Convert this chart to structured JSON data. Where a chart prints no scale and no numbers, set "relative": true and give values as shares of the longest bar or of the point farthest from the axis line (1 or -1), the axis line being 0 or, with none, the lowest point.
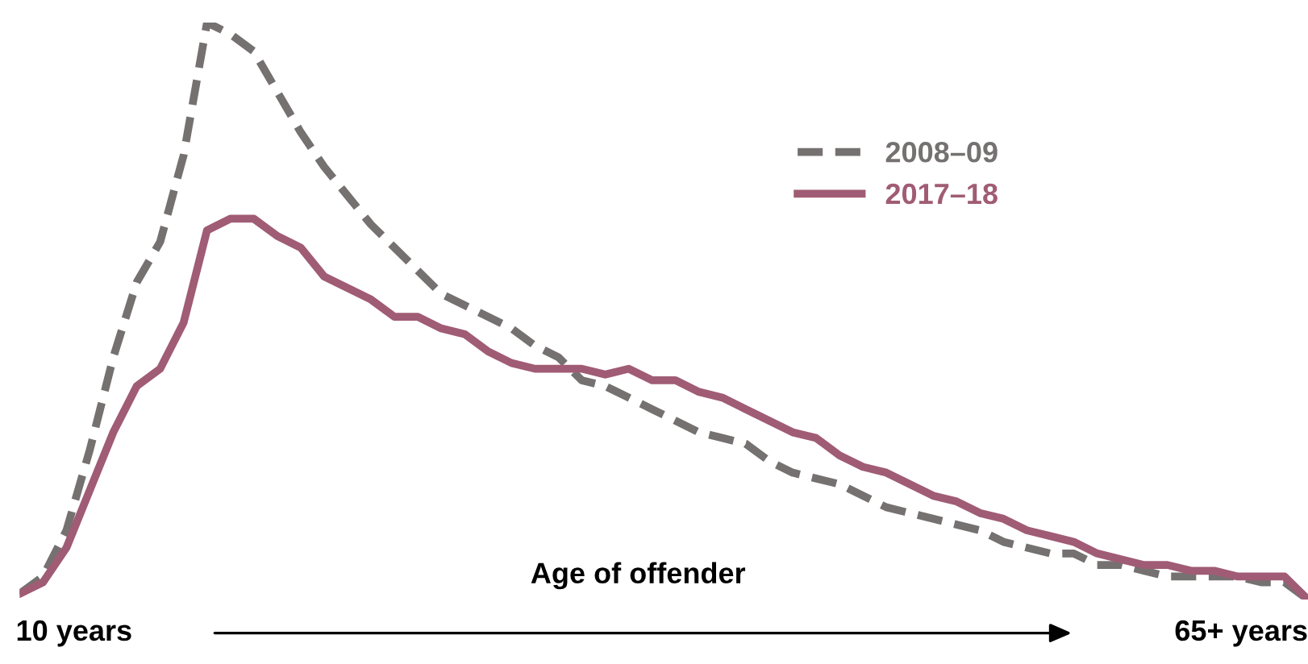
{
  "chart_data": {
    "type": "line",
    "relative": true,
    "xlabel": "Age of offender",
    "legend": "top right",
    "annotations": [
      "10 years",
      "65+ years"
    ],
    "categories": [
      null,
      null,
      null,
      null,
      null,
      null,
      null,
      null,
      null,
      null,
      null,
      null,
      null,
      null,
      null,
      null,
      null,
      null,
      null,
      null,
      null,
      null,
      null,
      null,
      null,
      null,
      null,
      null,
      null,
      null,
      null,
      null,
      null,
      null,
      null,
      null,
      null,
      null,
      null,
      null,
      null,
      null,
      null,
      null,
      null,
      null,
      null,
      null,
      null,
      null,
      null,
      null,
      null,
      null,
      null,
      null
    ],
    "series": [
      {
        "name": "2008–09",
        "color": "#767171",
        "line_style": "dashed",
        "values": [
          0.01,
          0.04,
          0.12,
          0.26,
          0.42,
          0.55,
          0.62,
          0.77,
          1.0,
          0.98,
          0.95,
          0.88,
          0.81,
          0.75,
          0.7,
          0.65,
          0.61,
          0.57,
          0.53,
          0.51,
          0.49,
          0.47,
          0.44,
          0.42,
          0.38,
          0.37,
          0.35,
          0.33,
          0.31,
          0.29,
          0.28,
          0.27,
          0.24,
          0.22,
          0.21,
          0.2,
          0.18,
          0.16,
          0.15,
          0.14,
          0.13,
          0.12,
          0.1,
          0.09,
          0.08,
          0.08,
          0.06,
          0.06,
          0.05,
          0.04,
          0.04,
          0.04,
          0.04,
          0.03,
          0.03,
          0.0
        ]
      },
      {
        "name": "2017–18",
        "color": "#a05c74",
        "line_style": "solid",
        "values": [
          0.01,
          0.03,
          0.09,
          0.19,
          0.29,
          0.37,
          0.4,
          0.48,
          0.64,
          0.66,
          0.66,
          0.63,
          0.61,
          0.56,
          0.54,
          0.52,
          0.49,
          0.49,
          0.47,
          0.46,
          0.43,
          0.41,
          0.4,
          0.4,
          0.4,
          0.39,
          0.4,
          0.38,
          0.38,
          0.36,
          0.35,
          0.33,
          0.31,
          0.29,
          0.28,
          0.25,
          0.23,
          0.22,
          0.2,
          0.18,
          0.17,
          0.15,
          0.14,
          0.12,
          0.11,
          0.1,
          0.08,
          0.07,
          0.06,
          0.06,
          0.05,
          0.05,
          0.04,
          0.04,
          0.04,
          0.0
        ]
      }
    ]
  }
}
